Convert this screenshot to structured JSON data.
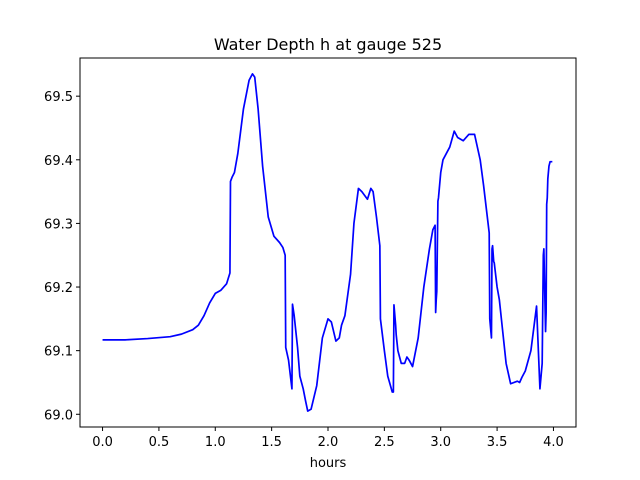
{
  "chart_data": {
    "type": "line",
    "title": "Water Depth h at gauge 525",
    "xlabel": "hours",
    "ylabel": "",
    "xlim": [
      -0.2,
      4.2
    ],
    "ylim": [
      68.98,
      69.56
    ],
    "xticks": [
      0.0,
      0.5,
      1.0,
      1.5,
      2.0,
      2.5,
      3.0,
      3.5,
      4.0
    ],
    "xtick_labels": [
      "0.0",
      "0.5",
      "1.0",
      "1.5",
      "2.0",
      "2.5",
      "3.0",
      "3.5",
      "4.0"
    ],
    "yticks": [
      69.0,
      69.1,
      69.2,
      69.3,
      69.4,
      69.5
    ],
    "ytick_labels": [
      "69.0",
      "69.1",
      "69.2",
      "69.3",
      "69.4",
      "69.5"
    ],
    "grid": false,
    "series": [
      {
        "color": "#0000ff",
        "x": [
          0.0,
          0.2,
          0.4,
          0.6,
          0.7,
          0.8,
          0.85,
          0.9,
          0.95,
          1.0,
          1.05,
          1.1,
          1.13,
          1.135,
          1.15,
          1.17,
          1.2,
          1.25,
          1.3,
          1.33,
          1.35,
          1.38,
          1.42,
          1.47,
          1.52,
          1.57,
          1.6,
          1.62,
          1.625,
          1.65,
          1.68,
          1.685,
          1.7,
          1.73,
          1.75,
          1.78,
          1.8,
          1.82,
          1.85,
          1.9,
          1.95,
          2.0,
          2.03,
          2.07,
          2.1,
          2.12,
          2.15,
          2.2,
          2.23,
          2.27,
          2.3,
          2.35,
          2.38,
          2.4,
          2.43,
          2.46,
          2.465,
          2.5,
          2.53,
          2.57,
          2.58,
          2.585,
          2.6,
          2.605,
          2.62,
          2.65,
          2.68,
          2.7,
          2.72,
          2.75,
          2.8,
          2.85,
          2.9,
          2.93,
          2.95,
          2.955,
          2.96,
          2.965,
          2.975,
          2.98,
          3.0,
          3.02,
          3.05,
          3.08,
          3.12,
          3.15,
          3.2,
          3.25,
          3.3,
          3.35,
          3.38,
          3.42,
          3.43,
          3.435,
          3.45,
          3.455,
          3.46,
          3.47,
          3.475,
          3.48,
          3.5,
          3.52,
          3.55,
          3.58,
          3.62,
          3.68,
          3.7,
          3.72,
          3.75,
          3.8,
          3.85,
          3.88,
          3.9,
          3.91,
          3.915,
          3.93,
          3.935,
          3.94,
          3.945,
          3.95,
          3.96,
          3.97,
          3.99
        ],
        "y": [
          69.117,
          69.117,
          69.119,
          69.122,
          69.126,
          69.133,
          69.14,
          69.155,
          69.175,
          69.19,
          69.195,
          69.205,
          69.222,
          69.366,
          69.373,
          69.38,
          69.41,
          69.48,
          69.525,
          69.535,
          69.53,
          69.48,
          69.39,
          69.31,
          69.28,
          69.27,
          69.262,
          69.25,
          69.105,
          69.085,
          69.04,
          69.173,
          69.155,
          69.105,
          69.06,
          69.04,
          69.022,
          69.005,
          69.008,
          69.045,
          69.12,
          69.15,
          69.145,
          69.115,
          69.12,
          69.14,
          69.155,
          69.22,
          69.3,
          69.355,
          69.35,
          69.338,
          69.355,
          69.35,
          69.31,
          69.265,
          69.15,
          69.1,
          69.06,
          69.035,
          69.035,
          69.172,
          69.14,
          69.125,
          69.1,
          69.08,
          69.08,
          69.09,
          69.085,
          69.075,
          69.12,
          69.2,
          69.26,
          69.29,
          69.297,
          69.16,
          69.18,
          69.193,
          69.335,
          69.34,
          69.38,
          69.4,
          69.41,
          69.42,
          69.445,
          69.435,
          69.43,
          69.44,
          69.44,
          69.4,
          69.36,
          69.3,
          69.285,
          69.15,
          69.12,
          69.26,
          69.265,
          69.24,
          69.238,
          69.23,
          69.2,
          69.18,
          69.13,
          69.08,
          69.048,
          69.052,
          69.05,
          69.058,
          69.068,
          69.1,
          69.17,
          69.04,
          69.08,
          69.25,
          69.26,
          69.13,
          69.16,
          69.33,
          69.34,
          69.37,
          69.39,
          69.397,
          69.397
        ]
      }
    ]
  }
}
